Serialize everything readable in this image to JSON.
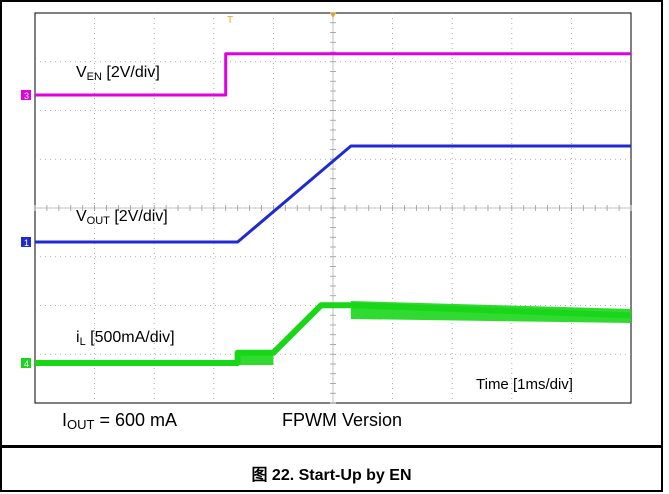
{
  "chart_data": {
    "type": "line",
    "title": "Start-Up by EN",
    "figure_label": "图 22. Start-Up by EN",
    "time_label": "Time [1ms/div]",
    "conditions": "I",
    "conditions_sub": "OUT",
    "conditions_value": " = 600 mA",
    "version_label": "FPWM Version",
    "grid": true,
    "x_divisions": 10,
    "y_divisions": 8,
    "series": [
      {
        "name": "V",
        "name_sub": "EN",
        "scale": " [2V/div]",
        "color": "#e000e0",
        "marker": "3",
        "points": [
          [
            0,
            0
          ],
          [
            3.2,
            0
          ],
          [
            3.2,
            0.55
          ],
          [
            10,
            0.55
          ]
        ]
      },
      {
        "name": "V",
        "name_sub": "OUT",
        "scale": " [2V/div]",
        "color": "#1f2bd0",
        "marker": "1",
        "points": [
          [
            0,
            0
          ],
          [
            3.4,
            0
          ],
          [
            5.3,
            1.6
          ],
          [
            10,
            1.6
          ]
        ]
      },
      {
        "name": "i",
        "name_sub": "L",
        "scale": " [500mA/div]",
        "color": "#19d619",
        "marker": "4",
        "points": [
          [
            0,
            0
          ],
          [
            3.4,
            0
          ],
          [
            3.4,
            0.15
          ],
          [
            4.0,
            0.15
          ],
          [
            4.8,
            0.85
          ],
          [
            5.3,
            0.85
          ],
          [
            10,
            0.7
          ]
        ]
      }
    ]
  }
}
